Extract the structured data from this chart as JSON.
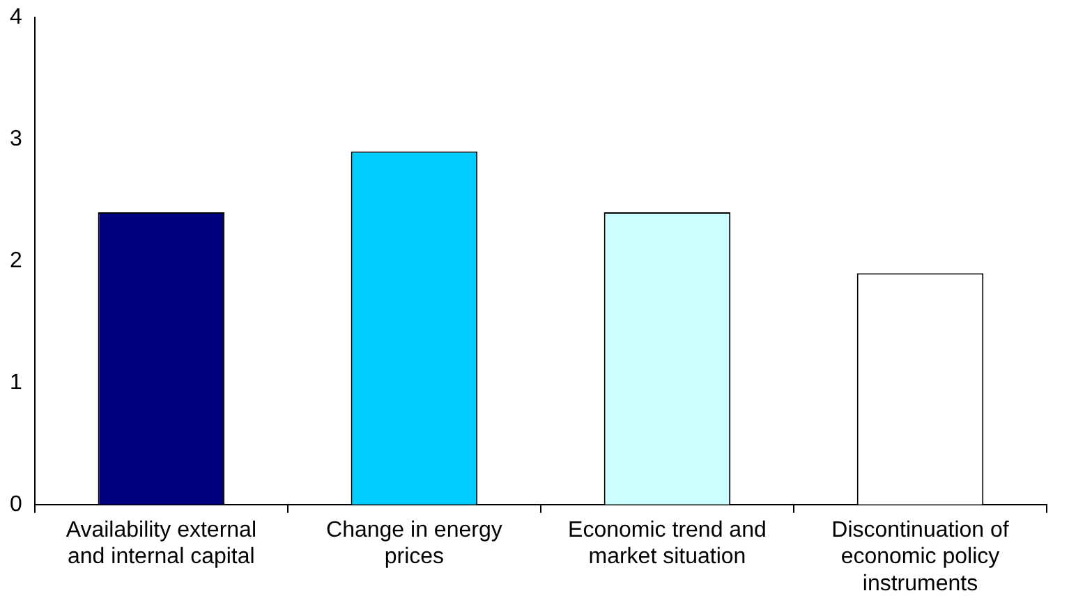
{
  "chart_data": {
    "type": "bar",
    "categories": [
      "Availability external and internal capital",
      "Change in energy prices",
      "Economic trend and market situation",
      "Discontinuation of economic policy instruments"
    ],
    "values": [
      2.4,
      2.9,
      2.4,
      1.9
    ],
    "colors": [
      "#000080",
      "#00ccff",
      "#ccffff",
      "#ffffff"
    ],
    "ylim": [
      0,
      4
    ],
    "yticks": [
      0,
      1,
      2,
      3,
      4
    ],
    "grid": false,
    "legend": false
  }
}
